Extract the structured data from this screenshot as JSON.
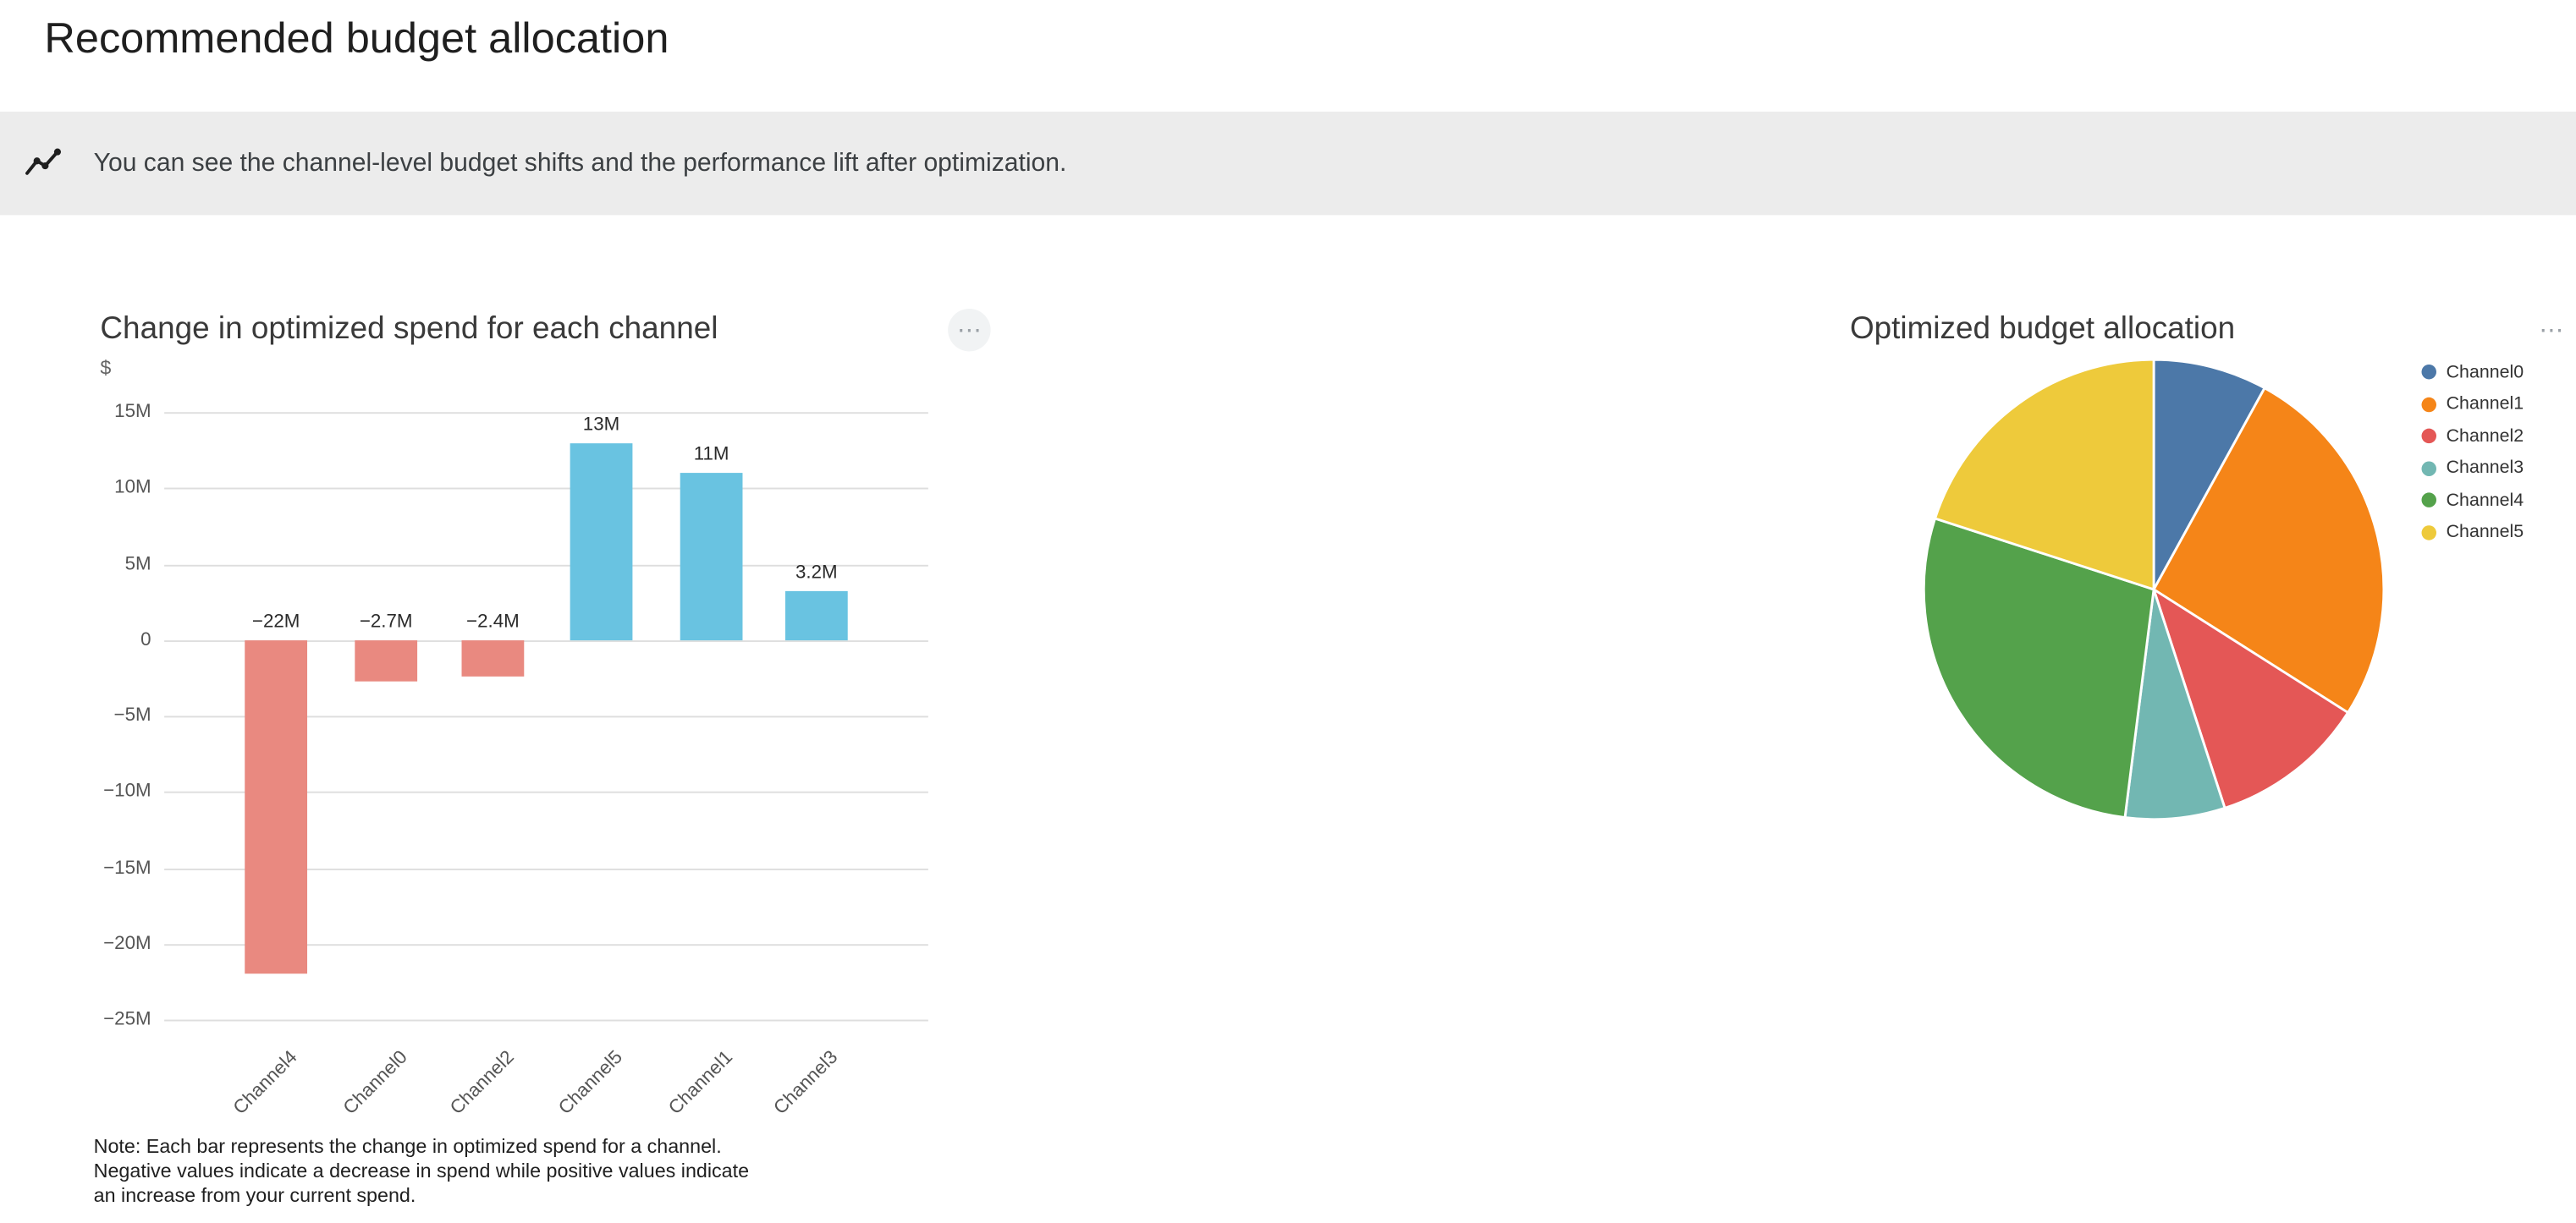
{
  "page": {
    "title": "Recommended budget allocation",
    "banner": {
      "icon": "insights-icon",
      "text": "You can see the channel-level budget shifts and the performance lift after optimization."
    }
  },
  "ui": {
    "ellipsis": "⋯",
    "banner_bg": "#ececec"
  },
  "chart_data": [
    {
      "type": "bar",
      "title": "Change in optimized spend for each channel",
      "xlabel": "",
      "ylabel": "$",
      "categories": [
        "Channel4",
        "Channel0",
        "Channel2",
        "Channel5",
        "Channel1",
        "Channel3"
      ],
      "values": [
        -22,
        -2.7,
        -2.4,
        13,
        11,
        3.2
      ],
      "value_labels": [
        "−22M",
        "−2.7M",
        "−2.4M",
        "13M",
        "11M",
        "3.2M"
      ],
      "unit": "M",
      "y_ticks": [
        15,
        10,
        5,
        0,
        -5,
        -10,
        -15,
        -20,
        -25
      ],
      "y_tick_labels": [
        "15M",
        "10M",
        "5M",
        "0",
        "−5M",
        "−10M",
        "−15M",
        "−20M",
        "−25M"
      ],
      "ylim": [
        -25,
        15
      ],
      "grid": true,
      "colors": {
        "positive": "#69c3e1",
        "negative": "#e98980"
      },
      "note": "Note: Each bar represents the change in optimized spend for a channel. Negative values indicate a decrease in spend while positive values indicate an increase from your current spend."
    },
    {
      "type": "pie",
      "title": "Optimized budget allocation",
      "legend_position": "right",
      "slices": [
        {
          "label": "Channel0",
          "percent": 8,
          "color": "#4c78a8"
        },
        {
          "label": "Channel1",
          "percent": 26,
          "color": "#f58518"
        },
        {
          "label": "Channel2",
          "percent": 11,
          "color": "#e45756"
        },
        {
          "label": "Channel3",
          "percent": 7,
          "color": "#72b7b2"
        },
        {
          "label": "Channel4",
          "percent": 28,
          "color": "#54a24b"
        },
        {
          "label": "Channel5",
          "percent": 20,
          "color": "#eeca3b"
        }
      ]
    }
  ]
}
